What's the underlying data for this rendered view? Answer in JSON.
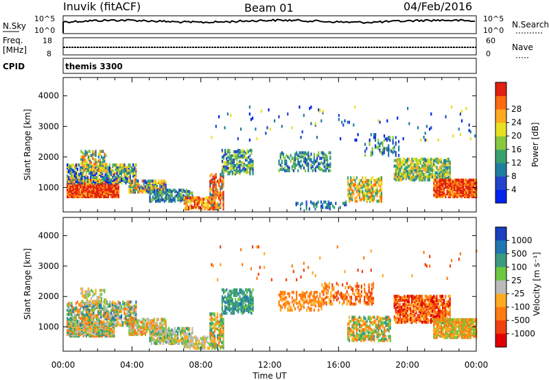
{
  "header": {
    "left": "Inuvik (fitACF)",
    "center": "Beam 01",
    "right": "04/Feb/2016"
  },
  "nsky_panel": {
    "left_label": "N.Sky",
    "right_label": "N.Search",
    "left_top_tick": "10^5",
    "left_bottom_tick": "10^0",
    "right_top_tick": "10^5",
    "right_bottom_tick": "10^0"
  },
  "freq_panel": {
    "left_label_1": "Freq.",
    "left_label_2": "[MHz]",
    "right_label": "Nave",
    "left_ticks": [
      "18",
      "8"
    ],
    "right_ticks": [
      "60",
      "0"
    ]
  },
  "cpid_panel": {
    "label": "CPID",
    "value": "themis 3300"
  },
  "chart_data": [
    {
      "type": "heatmap",
      "title": "",
      "quantity": "Power",
      "xlabel": "Time UT",
      "ylabel": "Slant Range [km]",
      "xlim_hours": [
        0,
        24
      ],
      "ylim_km": [
        200,
        4600
      ],
      "x_ticks": [
        "00:00",
        "04:00",
        "08:00",
        "12:00",
        "16:00",
        "20:00",
        "00:00"
      ],
      "y_ticks": [
        "1000",
        "2000",
        "3000",
        "4000"
      ],
      "colorbar": {
        "label": "Power [dB]",
        "ticks": [
          "4",
          "8",
          "12",
          "16",
          "20",
          "24",
          "28"
        ],
        "range": [
          0,
          32
        ],
        "colors": [
          "#0022ee",
          "#2244cc",
          "#207fa0",
          "#3aa070",
          "#88c840",
          "#e8e020",
          "#ffaa20",
          "#ff6a10",
          "#e02010"
        ]
      }
    },
    {
      "type": "heatmap",
      "title": "",
      "quantity": "Velocity",
      "xlabel": "Time UT",
      "ylabel": "Slant Range [km]",
      "xlim_hours": [
        0,
        24
      ],
      "ylim_km": [
        200,
        4600
      ],
      "x_ticks": [
        "00:00",
        "04:00",
        "08:00",
        "12:00",
        "16:00",
        "20:00",
        "00:00"
      ],
      "y_ticks": [
        "1000",
        "2000",
        "3000",
        "4000"
      ],
      "colorbar": {
        "label": "Velocity [m s⁻¹]",
        "ticks": [
          "1000",
          "500",
          "100",
          "25",
          "-25",
          "-100",
          "-500",
          "-1000"
        ],
        "colors": [
          "#1a3fbf",
          "#2077b0",
          "#3a9a80",
          "#6cc840",
          "#bbbbbb",
          "#ffaa20",
          "#ff7a10",
          "#f04010",
          "#e00000"
        ]
      }
    }
  ]
}
